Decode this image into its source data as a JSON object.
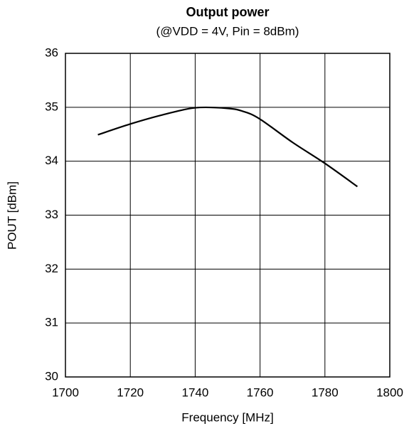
{
  "chart_data": {
    "type": "line",
    "title": "Output power",
    "subtitle": "(@VDD = 4V, Pin = 8dBm)",
    "xlabel": "Frequency [MHz]",
    "ylabel": "POUT [dBm]",
    "x": [
      1710,
      1720,
      1730,
      1740,
      1750,
      1755,
      1760,
      1770,
      1780,
      1790
    ],
    "values": [
      34.49,
      34.69,
      34.86,
      34.99,
      34.98,
      34.92,
      34.78,
      34.35,
      33.96,
      33.53
    ],
    "color": "#000000",
    "xlim": [
      1700,
      1800
    ],
    "xticks": [
      1700,
      1720,
      1740,
      1760,
      1780,
      1800
    ],
    "ylim": [
      30,
      36
    ],
    "yticks": [
      30,
      31,
      32,
      33,
      34,
      35,
      36
    ],
    "grid": true
  }
}
